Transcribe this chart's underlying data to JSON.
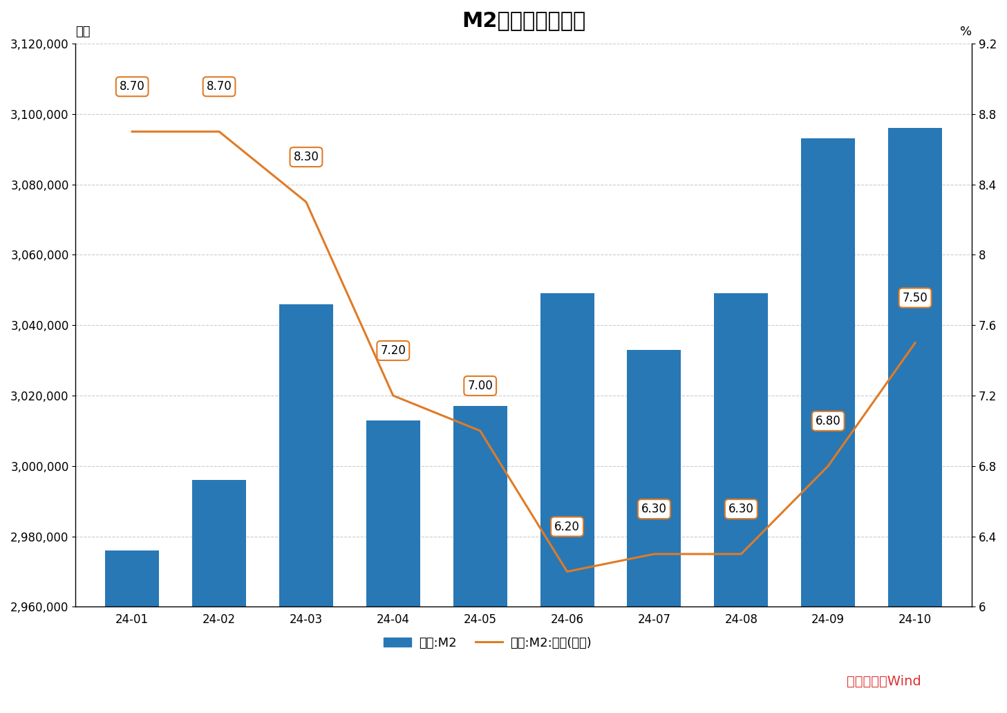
{
  "title": "M2数据及变化情况",
  "categories": [
    "24-01",
    "24-02",
    "24-03",
    "24-04",
    "24-05",
    "24-06",
    "24-07",
    "24-08",
    "24-09",
    "24-10"
  ],
  "m2_values": [
    2976000,
    2996000,
    3046000,
    3013000,
    3017000,
    3049000,
    3033000,
    3049000,
    3093000,
    3096000
  ],
  "yoy_values": [
    8.7,
    8.7,
    8.3,
    7.2,
    7.0,
    6.2,
    6.3,
    6.3,
    6.8,
    7.5
  ],
  "bar_color": "#2878b5",
  "line_color": "#e07b26",
  "ylabel_left": "亿元",
  "ylabel_right": "%",
  "ylim_left": [
    2960000,
    3120000
  ],
  "ylim_right": [
    6.0,
    9.2
  ],
  "yticks_left": [
    2960000,
    2980000,
    3000000,
    3020000,
    3040000,
    3060000,
    3080000,
    3100000,
    3120000
  ],
  "yticks_right": [
    6.0,
    6.4,
    6.8,
    7.2,
    7.6,
    8.0,
    8.4,
    8.8,
    9.2
  ],
  "legend_bar_label": "中国:M2",
  "legend_line_label": "中国:M2:同比(右轴)",
  "source_text": "数据来源：Wind",
  "source_color": "#e03030",
  "background_color": "#ffffff",
  "title_fontsize": 22,
  "label_fontsize": 13,
  "tick_fontsize": 12,
  "annotation_fontsize": 12,
  "annotation_labels": [
    "8.70",
    "8.70",
    "8.30",
    "7.20",
    "7.00",
    "6.20",
    "6.30",
    "6.30",
    "6.80",
    "7.50"
  ]
}
